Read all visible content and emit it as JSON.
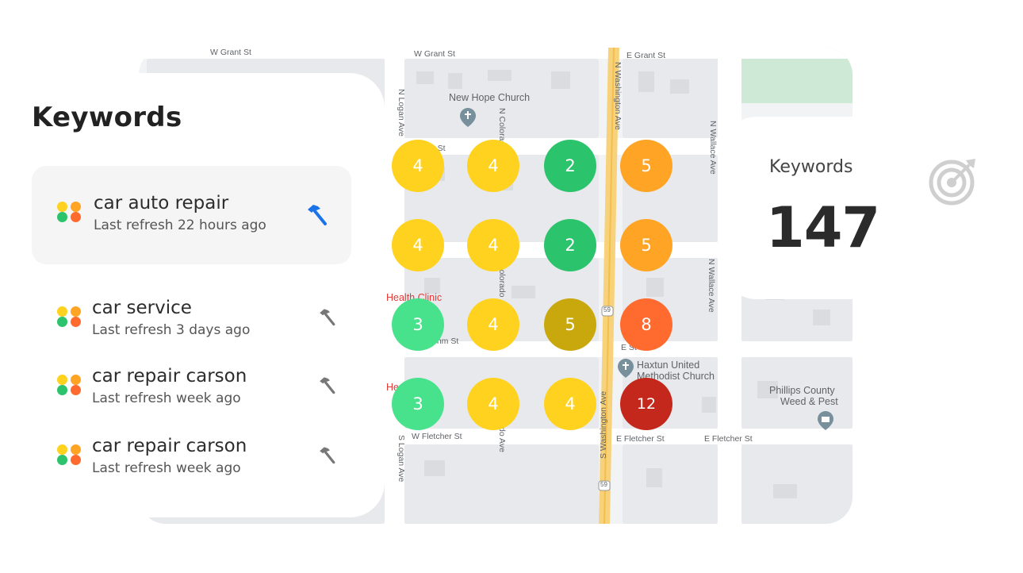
{
  "map": {
    "streets": {
      "w_grant_1": "W Grant St",
      "w_grant_2": "W Grant St",
      "e_grant": "E Grant St",
      "n_logan": "N Logan Ave",
      "n_colorado_top": "N Colorado",
      "n_washington": "N Washington Ave",
      "n_wallace_top": "N Wallace Ave",
      "n_wallace_mid": "N Wallace Ave",
      "n_colorado_mid": "Colorado",
      "w_fletcher": "W Fletcher St",
      "e_fletcher_1": "E Fletcher St",
      "e_fletcher_2": "E Fletcher St",
      "s_washington": "S Washington Ave",
      "s_logan": "S Logan Ave",
      "s_colorado": "do Ave",
      "an_st": "an St",
      "ohm_st": "ohm St",
      "e_st": "E St",
      "route_59_a": "59",
      "route_59_b": "59"
    },
    "pois": {
      "new_hope": "New Hope Church",
      "health_clinic": "Health Clinic",
      "he_fragment": "He",
      "haxtun_line1": "Haxtun United",
      "haxtun_line2": "Methodist Church",
      "phillips_line1": "Phillips County",
      "phillips_line2": "Weed & Pest"
    },
    "rank_grid": [
      {
        "rank": "4",
        "color": "#FFD21F"
      },
      {
        "rank": "4",
        "color": "#FFD21F"
      },
      {
        "rank": "2",
        "color": "#2BC36B"
      },
      {
        "rank": "5",
        "color": "#FFA424"
      },
      {
        "rank": "4",
        "color": "#FFD21F"
      },
      {
        "rank": "4",
        "color": "#FFD21F"
      },
      {
        "rank": "2",
        "color": "#2BC36B"
      },
      {
        "rank": "5",
        "color": "#FFA424"
      },
      {
        "rank": "3",
        "color": "#48E28C"
      },
      {
        "rank": "4",
        "color": "#FFD21F"
      },
      {
        "rank": "5",
        "color": "#C9A80E"
      },
      {
        "rank": "8",
        "color": "#FF6A2E"
      },
      {
        "rank": "3",
        "color": "#48E28C"
      },
      {
        "rank": "4",
        "color": "#FFD21F"
      },
      {
        "rank": "4",
        "color": "#FFD21F"
      },
      {
        "rank": "12",
        "color": "#C4281C"
      }
    ]
  },
  "keywords_panel": {
    "title": "Keywords",
    "items": [
      {
        "name": "car auto repair",
        "refresh": "Last refresh 22 hours ago",
        "active": true
      },
      {
        "name": "car service",
        "refresh": "Last refresh 3 days ago",
        "active": false
      },
      {
        "name": "car repair carson",
        "refresh": "Last refresh week ago",
        "active": false
      },
      {
        "name": "car repair carson",
        "refresh": "Last refresh week ago",
        "active": false
      }
    ],
    "dot_colors": [
      "#FFD21F",
      "#FFA424",
      "#2BC36B",
      "#FF6A2E"
    ],
    "active_icon_color": "#1A73E8",
    "inactive_icon_color": "#777777",
    "item_icon": "hammer-icon"
  },
  "stat_card": {
    "label": "Keywords",
    "value": "147",
    "icon": "target-icon"
  }
}
